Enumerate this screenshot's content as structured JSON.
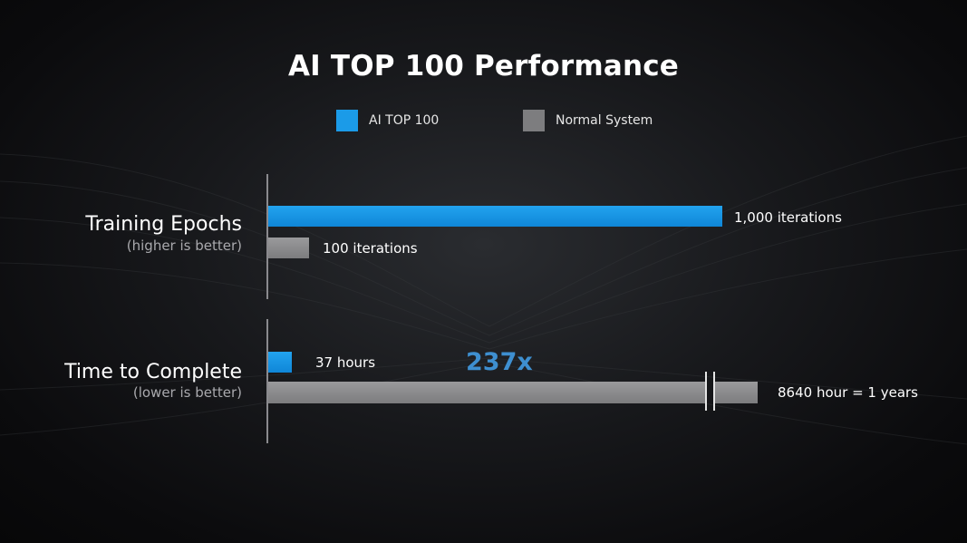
{
  "title": "AI TOP 100 Performance",
  "legend": [
    {
      "label": "AI TOP 100",
      "color": "#1b9be8"
    },
    {
      "label": "Normal System",
      "color": "#7d7d7f"
    }
  ],
  "chart_data": {
    "type": "bar",
    "orientation": "horizontal",
    "title": "AI TOP 100 Performance",
    "legend_placement": "top-center",
    "grid": false,
    "series_names": [
      "AI TOP 100",
      "Normal System"
    ],
    "groups": [
      {
        "category": "Training Epochs",
        "subtitle": "(higher is better)",
        "values": [
          1000,
          100
        ],
        "value_labels": [
          "1,000 iterations",
          "100 iterations"
        ],
        "units": "iterations"
      },
      {
        "category": "Time to Complete",
        "subtitle": "(lower is better)",
        "values": [
          37,
          8640
        ],
        "value_labels": [
          "37 hours",
          "8640 hour = 1 years"
        ],
        "units": "hours",
        "axis_break": true
      }
    ],
    "annotation": "237x"
  }
}
